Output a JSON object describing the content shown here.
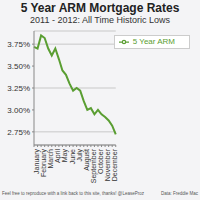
{
  "chart_data": {
    "type": "line",
    "title": "5 Year ARM Mortgage Rates",
    "subtitle": "2011 - 2012: All Time Historic Lows",
    "categories": [
      "January",
      null,
      "February",
      null,
      "March",
      null,
      "April",
      null,
      "May",
      null,
      "June",
      null,
      "July",
      null,
      "August",
      null,
      "September",
      null,
      "October",
      null,
      "November",
      null,
      "December",
      null
    ],
    "series": [
      {
        "name": "5 Year ARM",
        "color": "#5a9e32",
        "values": [
          3.72,
          3.7,
          3.85,
          3.82,
          3.7,
          3.62,
          3.7,
          3.58,
          3.45,
          3.4,
          3.3,
          3.22,
          3.25,
          3.22,
          3.1,
          3.0,
          3.02,
          2.95,
          3.0,
          2.95,
          2.92,
          2.88,
          2.82,
          2.72
        ]
      }
    ],
    "ylim": [
      2.6,
      3.9
    ],
    "yticks": [
      {
        "value": 2.75,
        "label": "2.75%"
      },
      {
        "value": 3.0,
        "label": "3.00%"
      },
      {
        "value": 3.25,
        "label": "3.25%"
      },
      {
        "value": 3.5,
        "label": "3.50%"
      },
      {
        "value": 3.75,
        "label": "3.75%"
      }
    ],
    "grid": true,
    "legend": "upper right",
    "annotations": [
      "Feel free to reproduce with a link back to this site, thanks! @LeaseProz",
      "Data: Freddie Mac"
    ]
  }
}
